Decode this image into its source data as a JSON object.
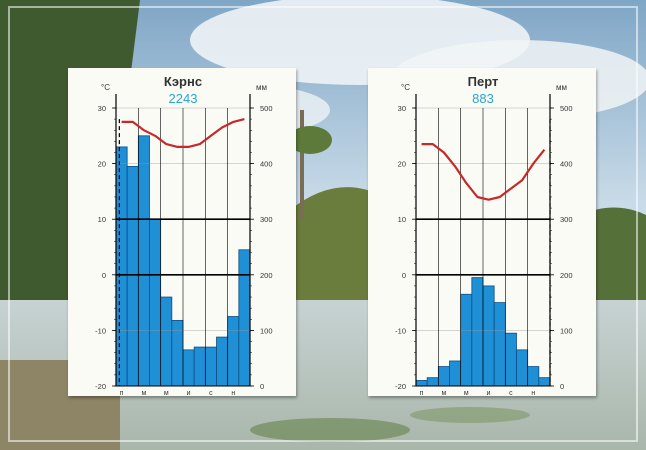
{
  "chart_data": [
    {
      "type": "bar",
      "title": "Кэрнс",
      "subtitle": "2243",
      "left_unit": "°C",
      "right_unit": "мм",
      "categories": [
        "Я",
        "Ф",
        "М",
        "А",
        "М",
        "И",
        "И",
        "А",
        "С",
        "О",
        "Н",
        "Д"
      ],
      "x_tick_labels": [
        "п",
        "м",
        "м",
        "и",
        "с",
        "н"
      ],
      "precip_mm": [
        430,
        395,
        450,
        300,
        160,
        118,
        65,
        70,
        70,
        88,
        125,
        245
      ],
      "temp_c": [
        27.5,
        27.5,
        26.0,
        25.0,
        23.5,
        23.0,
        23.0,
        23.5,
        25.0,
        26.5,
        27.5,
        28.0
      ],
      "y_left_ticks": [
        30,
        20,
        10,
        0,
        -10,
        -20
      ],
      "y_right_ticks": [
        500,
        400,
        300,
        200,
        100,
        0
      ],
      "ylim_temp": [
        -20,
        30
      ],
      "ylim_precip": [
        0,
        500
      ],
      "colors": {
        "bars": "#1f8fd6",
        "temp_line": "#c52a2a",
        "subtitle": "#2aa6c8"
      },
      "dry_markers": [
        0
      ]
    },
    {
      "type": "bar",
      "title": "Перт",
      "subtitle": "883",
      "left_unit": "°C",
      "right_unit": "мм",
      "categories": [
        "Я",
        "Ф",
        "М",
        "А",
        "М",
        "И",
        "И",
        "А",
        "С",
        "О",
        "Н",
        "Д"
      ],
      "x_tick_labels": [
        "п",
        "м",
        "м",
        "и",
        "с",
        "н"
      ],
      "precip_mm": [
        10,
        15,
        35,
        45,
        165,
        195,
        180,
        150,
        95,
        65,
        35,
        15
      ],
      "temp_c": [
        23.5,
        23.5,
        22.0,
        19.5,
        16.5,
        14.0,
        13.5,
        14.0,
        15.5,
        17.0,
        20.0,
        22.5
      ],
      "y_left_ticks": [
        30,
        20,
        10,
        0,
        -10,
        -20
      ],
      "y_right_ticks": [
        500,
        400,
        300,
        200,
        100,
        0
      ],
      "ylim_temp": [
        -20,
        30
      ],
      "ylim_precip": [
        0,
        500
      ],
      "colors": {
        "bars": "#1f8fd6",
        "temp_line": "#c52a2a",
        "subtitle": "#2aa6c8"
      },
      "dry_markers": [
        11
      ]
    }
  ]
}
